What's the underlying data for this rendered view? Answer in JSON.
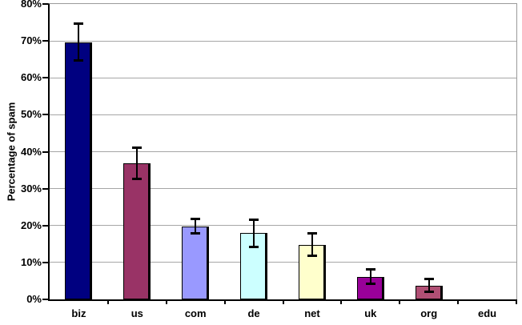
{
  "chart_data": {
    "type": "bar",
    "title": "",
    "ylabel": "Percentage of spam",
    "xlabel": "",
    "categories": [
      "biz",
      "us",
      "com",
      "de",
      "net",
      "uk",
      "org",
      "edu"
    ],
    "values": [
      69.7,
      36.8,
      19.8,
      17.9,
      14.7,
      6.1,
      3.7,
      0
    ],
    "error_plus": [
      5.0,
      4.4,
      2.1,
      3.8,
      3.4,
      2.1,
      2.0,
      0
    ],
    "error_minus": [
      5.0,
      4.3,
      2.1,
      3.8,
      3.0,
      1.9,
      1.8,
      0
    ],
    "bar_colors": [
      "#000080",
      "#993366",
      "#9999ff",
      "#ccffff",
      "#ffffcc",
      "#990099",
      "#b04f74",
      null
    ],
    "ylim": [
      0,
      80
    ],
    "ytick_step": 10,
    "ytick_labels": [
      "0%",
      "10%",
      "20%",
      "30%",
      "40%",
      "50%",
      "60%",
      "70%",
      "80%"
    ],
    "grid": true,
    "legend": "none",
    "gridline_color": "#a6a6a6",
    "axis_color": "#000000",
    "error_bar_color": "#000000",
    "plot_border_color": "#9a9a9a",
    "background_color": "#ffffff"
  }
}
